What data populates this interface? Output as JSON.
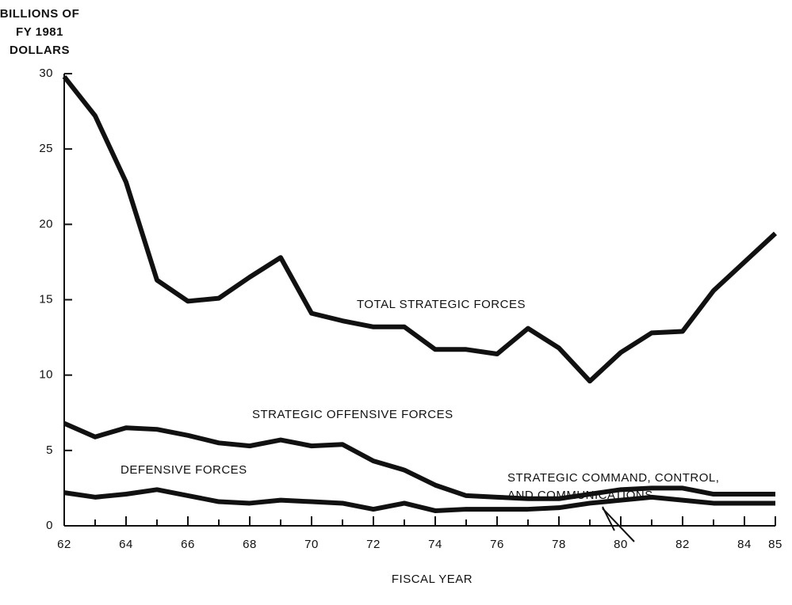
{
  "chart_data": {
    "type": "line",
    "ylabel": [
      "BILLIONS OF",
      "FY 1981",
      "DOLLARS"
    ],
    "xlabel": "FISCAL YEAR",
    "annotation": [
      "STRATEGIC COMMAND, CONTROL,",
      "AND COMMUNICATIONS"
    ],
    "x": [
      62,
      63,
      64,
      65,
      66,
      67,
      68,
      69,
      70,
      71,
      72,
      73,
      74,
      75,
      76,
      77,
      78,
      79,
      80,
      81,
      82,
      83,
      84,
      85
    ],
    "series": [
      {
        "name": "TOTAL STRATEGIC FORCES",
        "color": "#111111",
        "values": [
          29.8,
          27.2,
          22.8,
          16.3,
          14.9,
          15.1,
          16.5,
          17.8,
          14.1,
          13.6,
          13.2,
          13.2,
          11.7,
          11.7,
          11.4,
          13.1,
          11.8,
          9.6,
          11.5,
          12.8,
          12.9,
          15.6,
          17.5,
          19.4
        ]
      },
      {
        "name": "STRATEGIC OFFENSIVE FORCES",
        "color": "#111111",
        "values": [
          6.8,
          5.9,
          6.5,
          6.4,
          6.0,
          5.5,
          5.3,
          5.7,
          5.3,
          5.4,
          4.3,
          3.7,
          2.7,
          2.0,
          1.9,
          1.8,
          1.8,
          2.1,
          2.4,
          2.5,
          2.5,
          2.1,
          2.1,
          2.1
        ]
      },
      {
        "name": "DEFENSIVE FORCES",
        "color": "#111111",
        "values": [
          2.2,
          1.9,
          2.1,
          2.4,
          2.0,
          1.6,
          1.5,
          1.7,
          1.6,
          1.5,
          1.1,
          1.5,
          1.0,
          1.1,
          1.1,
          1.1,
          1.2,
          1.5,
          1.7,
          1.9,
          1.7,
          1.5,
          1.5,
          1.5
        ]
      }
    ],
    "xlim": [
      62,
      85
    ],
    "xticks": [
      62,
      64,
      66,
      68,
      70,
      72,
      74,
      76,
      78,
      80,
      82,
      84,
      85
    ],
    "ylim": [
      0,
      30
    ],
    "yticks": [
      0,
      5,
      10,
      15,
      20,
      25,
      30
    ]
  }
}
